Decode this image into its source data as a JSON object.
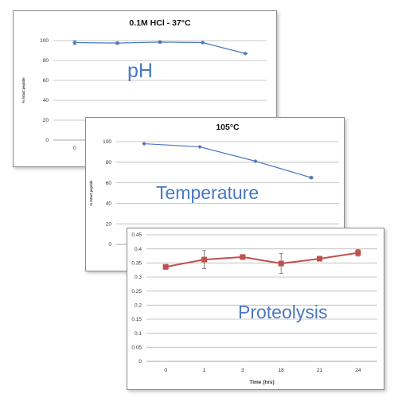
{
  "chart_data": [
    {
      "id": "ph",
      "type": "line",
      "title": "0.1M HCl - 37°C",
      "ylabel": "% Intact peptide",
      "overlay_label": "pH",
      "ylim": [
        0,
        100
      ],
      "yticks": [
        "0",
        "20",
        "40",
        "60",
        "80",
        "100"
      ],
      "categories": [
        "0",
        "",
        "",
        "",
        ""
      ],
      "grid": true,
      "series": [
        {
          "values": [
            98,
            97.5,
            98.5,
            98,
            87
          ],
          "errors": [
            2,
            1,
            1,
            0.5,
            0.5
          ],
          "color": "#4a78c2",
          "marker": "diamond"
        }
      ]
    },
    {
      "id": "temperature",
      "type": "line",
      "title": "105°C",
      "ylabel": "% Intact peptide",
      "overlay_label": "Temperature",
      "ylim": [
        0,
        100
      ],
      "yticks": [
        "0",
        "20",
        "40",
        "60",
        "80",
        "100"
      ],
      "categories": [
        "",
        "",
        "",
        ""
      ],
      "grid": true,
      "series": [
        {
          "values": [
            98,
            95,
            81,
            65
          ],
          "errors": [
            0,
            0,
            0,
            1
          ],
          "color": "#4a78c2",
          "marker": "diamond"
        }
      ]
    },
    {
      "id": "proteolysis",
      "type": "line",
      "title": "",
      "xlabel": "Time (hrs)",
      "ylabel": "",
      "overlay_label": "Proteolysis",
      "ylim": [
        0,
        0.45
      ],
      "yticks": [
        "0",
        "0.05",
        "0.1",
        "0.15",
        "0.2",
        "0.25",
        "0.3",
        "0.35",
        "0.4",
        "0.45"
      ],
      "categories": [
        "0",
        "1",
        "3",
        "18",
        "21",
        "24"
      ],
      "grid": true,
      "series": [
        {
          "values": [
            0.336,
            0.362,
            0.371,
            0.348,
            0.365,
            0.386
          ],
          "errors": [
            0.002,
            0.032,
            0.004,
            0.036,
            0.004,
            0.012
          ],
          "color": "#c0504d",
          "marker": "square"
        }
      ]
    }
  ]
}
